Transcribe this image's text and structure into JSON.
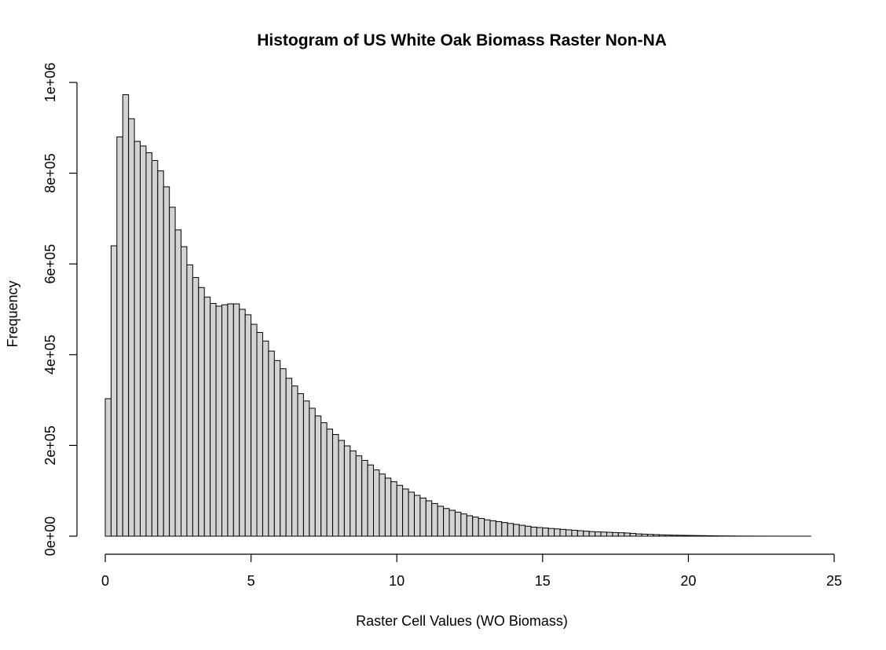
{
  "chart_data": {
    "type": "bar",
    "title": "Histogram of US White Oak Biomass Raster Non-NA",
    "xlabel": "Raster Cell Values (WO Biomass)",
    "ylabel": "Frequency",
    "xlim": [
      0,
      25
    ],
    "ylim": [
      0,
      1000000
    ],
    "x_ticks": [
      0,
      5,
      10,
      15,
      20,
      25
    ],
    "x_tick_labels": [
      "0",
      "5",
      "10",
      "15",
      "20",
      "25"
    ],
    "y_ticks": [
      0,
      200000,
      400000,
      600000,
      800000,
      1000000
    ],
    "y_tick_labels": [
      "0e+00",
      "2e+05",
      "4e+05",
      "6e+05",
      "8e+05",
      "1e+06"
    ],
    "grid": false,
    "bar_color": "#d3d3d3",
    "bin_width": 0.2,
    "bin_start": 0,
    "values": [
      303000,
      640000,
      880000,
      973000,
      920000,
      870000,
      860000,
      845000,
      828000,
      805000,
      770000,
      725000,
      675000,
      638000,
      598000,
      570000,
      548000,
      527000,
      513000,
      507000,
      510000,
      512000,
      512000,
      500000,
      488000,
      467000,
      449000,
      430000,
      408000,
      387000,
      369000,
      348000,
      331000,
      314000,
      298000,
      282000,
      265000,
      250000,
      236000,
      224000,
      211000,
      199000,
      188000,
      177000,
      167000,
      157000,
      146000,
      137000,
      128000,
      120000,
      112000,
      104000,
      97000,
      90000,
      84000,
      78000,
      72000,
      66000,
      61000,
      57000,
      53000,
      49000,
      45000,
      42000,
      39000,
      36000,
      34000,
      32000,
      30000,
      28000,
      26000,
      24000,
      22000,
      20000,
      19000,
      18000,
      17000,
      16000,
      15000,
      14000,
      13000,
      12000,
      11000,
      10000,
      9500,
      9000,
      8500,
      8000,
      7500,
      7000,
      6000,
      5000,
      4500,
      4000,
      3500,
      3000,
      2600,
      2200,
      2000,
      1800,
      1600,
      1400,
      1200,
      1000,
      800,
      600,
      500,
      400,
      300,
      250,
      200,
      150,
      100,
      80,
      60,
      50,
      40,
      30,
      20,
      15,
      10,
      8,
      5
    ]
  }
}
